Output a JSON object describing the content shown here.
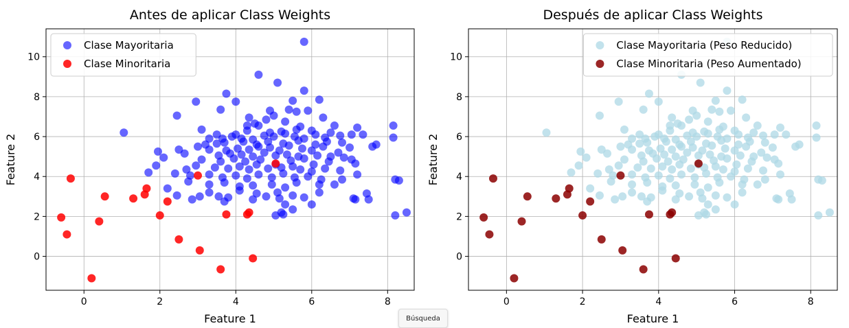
{
  "chart_data": [
    {
      "type": "scatter",
      "title": "Antes de aplicar Class Weights",
      "xlabel": "Feature 1",
      "ylabel": "Feature 2",
      "xlim": [
        -1.0,
        8.7
      ],
      "ylim": [
        -1.7,
        11.4
      ],
      "xticks": [
        0,
        2,
        4,
        6,
        8
      ],
      "yticks": [
        0,
        2,
        4,
        6,
        8,
        10
      ],
      "grid": true,
      "legend_position": "upper-left",
      "series": [
        {
          "name": "Clase Mayoritaria",
          "color": "#0000ff",
          "alpha": 0.6,
          "points": [
            [
              5.8,
              10.75
            ],
            [
              4.6,
              9.1
            ],
            [
              5.1,
              8.7
            ],
            [
              5.8,
              8.3
            ],
            [
              3.75,
              8.15
            ],
            [
              4.0,
              7.75
            ],
            [
              2.95,
              7.75
            ],
            [
              6.2,
              7.85
            ],
            [
              3.6,
              7.35
            ],
            [
              5.5,
              7.8
            ],
            [
              5.4,
              7.35
            ],
            [
              5.6,
              7.25
            ],
            [
              5.9,
              7.3
            ],
            [
              4.9,
              7.3
            ],
            [
              6.3,
              6.95
            ],
            [
              2.45,
              7.05
            ],
            [
              5.0,
              7.05
            ],
            [
              4.35,
              6.95
            ],
            [
              4.8,
              6.85
            ],
            [
              5.3,
              6.75
            ],
            [
              4.5,
              6.65
            ],
            [
              4.3,
              6.55
            ],
            [
              6.6,
              6.55
            ],
            [
              7.2,
              6.45
            ],
            [
              8.15,
              6.55
            ],
            [
              3.1,
              6.35
            ],
            [
              4.6,
              6.55
            ],
            [
              5.7,
              6.5
            ],
            [
              3.5,
              6.1
            ],
            [
              4.0,
              6.1
            ],
            [
              4.3,
              6.3
            ],
            [
              1.05,
              6.2
            ],
            [
              4.9,
              6.2
            ],
            [
              5.3,
              6.15
            ],
            [
              5.6,
              6.35
            ],
            [
              6.1,
              6.1
            ],
            [
              6.5,
              6.2
            ],
            [
              7.05,
              6.1
            ],
            [
              6.0,
              6.3
            ],
            [
              5.2,
              6.25
            ],
            [
              3.3,
              5.9
            ],
            [
              3.65,
              5.9
            ],
            [
              3.9,
              6.0
            ],
            [
              4.15,
              5.9
            ],
            [
              4.45,
              5.85
            ],
            [
              4.75,
              6.05
            ],
            [
              5.0,
              6.0
            ],
            [
              5.55,
              6.0
            ],
            [
              5.8,
              5.9
            ],
            [
              6.35,
              5.95
            ],
            [
              6.75,
              6.05
            ],
            [
              7.35,
              6.1
            ],
            [
              7.7,
              5.6
            ],
            [
              8.15,
              5.95
            ],
            [
              3.2,
              5.6
            ],
            [
              3.5,
              5.65
            ],
            [
              3.7,
              5.7
            ],
            [
              4.2,
              5.75
            ],
            [
              4.55,
              5.6
            ],
            [
              4.85,
              5.75
            ],
            [
              5.25,
              5.65
            ],
            [
              5.65,
              5.8
            ],
            [
              6.1,
              5.6
            ],
            [
              6.4,
              5.75
            ],
            [
              6.8,
              5.7
            ],
            [
              7.6,
              5.5
            ],
            [
              2.5,
              5.35
            ],
            [
              3.0,
              5.5
            ],
            [
              3.3,
              5.35
            ],
            [
              3.75,
              5.3
            ],
            [
              4.05,
              5.4
            ],
            [
              4.35,
              5.35
            ],
            [
              4.6,
              5.5
            ],
            [
              4.9,
              5.45
            ],
            [
              5.15,
              5.3
            ],
            [
              5.4,
              5.55
            ],
            [
              5.75,
              5.4
            ],
            [
              6.0,
              5.3
            ],
            [
              6.3,
              5.5
            ],
            [
              6.7,
              5.2
            ],
            [
              7.0,
              5.45
            ],
            [
              1.95,
              5.25
            ],
            [
              2.65,
              5.15
            ],
            [
              3.55,
              5.05
            ],
            [
              3.85,
              5.15
            ],
            [
              4.15,
              5.1
            ],
            [
              4.45,
              5.0
            ],
            [
              4.75,
              5.2
            ],
            [
              5.05,
              5.05
            ],
            [
              5.35,
              5.1
            ],
            [
              5.65,
              5.0
            ],
            [
              6.15,
              5.05
            ],
            [
              6.5,
              5.0
            ],
            [
              6.85,
              4.95
            ],
            [
              2.1,
              4.95
            ],
            [
              3.1,
              4.85
            ],
            [
              3.6,
              4.75
            ],
            [
              3.95,
              4.9
            ],
            [
              4.25,
              4.75
            ],
            [
              4.65,
              4.85
            ],
            [
              5.45,
              4.8
            ],
            [
              5.8,
              4.9
            ],
            [
              6.05,
              4.6
            ],
            [
              6.45,
              4.75
            ],
            [
              7.05,
              4.85
            ],
            [
              7.15,
              4.65
            ],
            [
              1.9,
              4.55
            ],
            [
              2.7,
              4.35
            ],
            [
              2.95,
              4.55
            ],
            [
              3.45,
              4.45
            ],
            [
              3.8,
              4.4
            ],
            [
              4.1,
              4.5
            ],
            [
              4.35,
              4.35
            ],
            [
              4.55,
              4.6
            ],
            [
              4.85,
              4.4
            ],
            [
              5.2,
              4.45
            ],
            [
              5.5,
              4.5
            ],
            [
              5.7,
              4.35
            ],
            [
              6.0,
              4.25
            ],
            [
              6.35,
              4.4
            ],
            [
              6.75,
              4.3
            ],
            [
              7.2,
              4.1
            ],
            [
              1.7,
              4.2
            ],
            [
              2.4,
              4.15
            ],
            [
              2.8,
              4.05
            ],
            [
              3.3,
              4.1
            ],
            [
              3.65,
              3.95
            ],
            [
              4.0,
              4.05
            ],
            [
              4.3,
              3.9
            ],
            [
              4.6,
              4.1
            ],
            [
              4.95,
              3.95
            ],
            [
              5.25,
              4.15
            ],
            [
              5.55,
              3.95
            ],
            [
              5.9,
              4.0
            ],
            [
              6.25,
              3.85
            ],
            [
              6.8,
              3.85
            ],
            [
              8.2,
              3.85
            ],
            [
              2.75,
              3.75
            ],
            [
              3.3,
              3.6
            ],
            [
              3.7,
              3.7
            ],
            [
              4.1,
              3.5
            ],
            [
              4.45,
              3.55
            ],
            [
              4.95,
              3.6
            ],
            [
              5.3,
              3.45
            ],
            [
              5.6,
              3.7
            ],
            [
              6.2,
              3.6
            ],
            [
              6.6,
              3.6
            ],
            [
              8.3,
              3.8
            ],
            [
              2.2,
              3.4
            ],
            [
              3.3,
              3.2
            ],
            [
              4.1,
              3.3
            ],
            [
              4.55,
              3.15
            ],
            [
              5.1,
              3.2
            ],
            [
              5.5,
              3.05
            ],
            [
              6.2,
              3.2
            ],
            [
              7.45,
              3.15
            ],
            [
              2.45,
              3.05
            ],
            [
              3.55,
              3.0
            ],
            [
              3.8,
              2.95
            ],
            [
              3.05,
              3.0
            ],
            [
              4.8,
              3.0
            ],
            [
              5.15,
              2.9
            ],
            [
              5.8,
              2.95
            ],
            [
              7.1,
              2.9
            ],
            [
              7.15,
              2.85
            ],
            [
              7.5,
              2.85
            ],
            [
              2.85,
              2.85
            ],
            [
              3.7,
              2.75
            ],
            [
              4.45,
              2.85
            ],
            [
              5.3,
              2.6
            ],
            [
              6.0,
              2.6
            ],
            [
              5.5,
              2.35
            ],
            [
              5.2,
              2.2
            ],
            [
              5.05,
              2.05
            ],
            [
              5.25,
              2.1
            ],
            [
              8.2,
              2.05
            ],
            [
              8.5,
              2.2
            ],
            [
              5.05,
              4.6
            ]
          ]
        },
        {
          "name": "Clase Minoritaria",
          "color": "#ff0000",
          "alpha": 0.85,
          "points": [
            [
              -0.35,
              3.9
            ],
            [
              0.55,
              3.0
            ],
            [
              1.3,
              2.9
            ],
            [
              1.6,
              3.1
            ],
            [
              1.65,
              3.4
            ],
            [
              2.2,
              2.75
            ],
            [
              3.0,
              4.05
            ],
            [
              2.0,
              2.05
            ],
            [
              3.75,
              2.1
            ],
            [
              4.3,
              2.1
            ],
            [
              4.35,
              2.2
            ],
            [
              5.05,
              4.65
            ],
            [
              -0.6,
              1.95
            ],
            [
              0.4,
              1.75
            ],
            [
              -0.45,
              1.1
            ],
            [
              2.5,
              0.85
            ],
            [
              3.05,
              0.3
            ],
            [
              4.45,
              -0.1
            ],
            [
              3.6,
              -0.65
            ],
            [
              0.2,
              -1.1
            ]
          ]
        }
      ]
    },
    {
      "type": "scatter",
      "title": "Después de aplicar Class Weights",
      "xlabel": "Feature 1",
      "ylabel": "Feature 2",
      "xlim": [
        -1.0,
        8.7
      ],
      "ylim": [
        -1.7,
        11.4
      ],
      "xticks": [
        0,
        2,
        4,
        6,
        8
      ],
      "yticks": [
        0,
        2,
        4,
        6,
        8,
        10
      ],
      "grid": true,
      "legend_position": "upper-right",
      "series": [
        {
          "name": "Clase Mayoritaria (Peso Reducido)",
          "color": "#add8e6",
          "alpha": 0.75,
          "points": "same-as-chart-1-majority"
        },
        {
          "name": "Clase Minoritaria (Peso Aumentado)",
          "color": "#8b0000",
          "alpha": 0.85,
          "points": "same-as-chart-1-minority"
        }
      ]
    }
  ],
  "tooltip": {
    "label": "Búsqueda"
  }
}
